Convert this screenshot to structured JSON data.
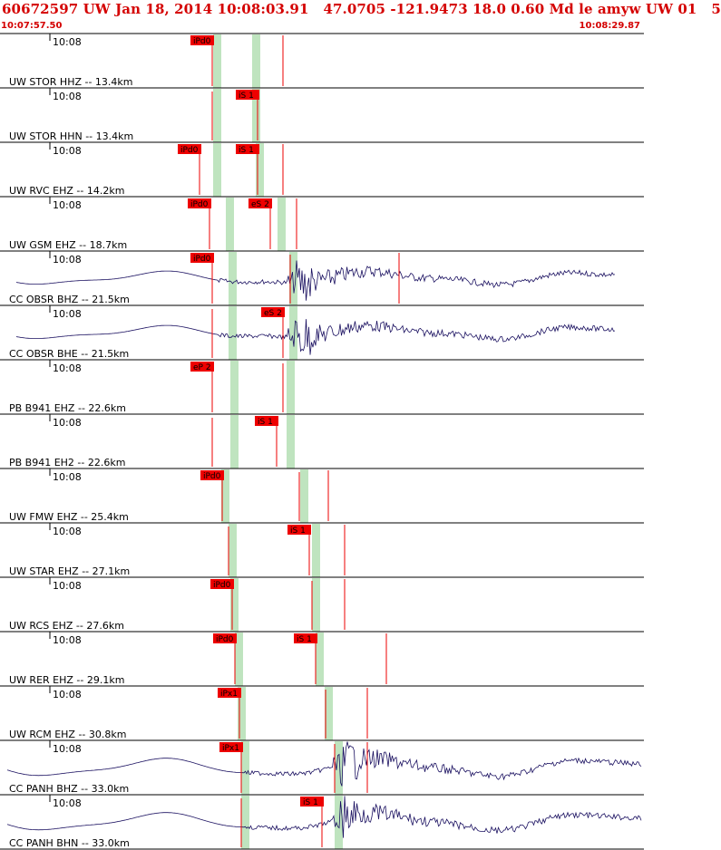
{
  "header": {
    "title": "60672597 UW Jan 18, 2014 10:08:03.91   47.0705 -121.9473 18.0 0.60 Md le amyw UW 01   5",
    "start_time": "10:07:57.50",
    "end_time": "10:08:29.87"
  },
  "colors": {
    "header_text": "#d40000",
    "pick_box": "#ee0000",
    "pick_window": "#bfe4bf",
    "trace": "#1a1060"
  },
  "traces": [
    {
      "label": "UW STOR HHZ -- 13.4km",
      "time": "10:08",
      "wave": "flat",
      "picks": [
        {
          "text": "iPd0",
          "p": 0.33,
          "wx": 0.337
        },
        {
          "text": "",
          "p": 0.44,
          "wx": 0.397,
          "noBox": true
        }
      ],
      "spikes": [
        0.44
      ]
    },
    {
      "label": "UW STOR HHN -- 13.4km",
      "time": "10:08",
      "wave": "flat",
      "picks": [
        {
          "text": "",
          "p": 0.33,
          "wx": 0.337,
          "noBox": true
        },
        {
          "text": "iS 1",
          "p": 0.4,
          "wx": 0.397
        }
      ],
      "spikes": []
    },
    {
      "label": "UW RVC EHZ -- 14.2km",
      "time": "10:08",
      "wave": "flat",
      "picks": [
        {
          "text": "iPd0",
          "p": 0.31,
          "wx": 0.336
        },
        {
          "text": "iS 1",
          "p": 0.4,
          "wx": 0.403
        }
      ],
      "spikes": [
        0.44
      ]
    },
    {
      "label": "UW GSM EHZ -- 18.7km",
      "time": "10:08",
      "wave": "flat",
      "picks": [
        {
          "text": "iPd0",
          "p": 0.325,
          "wx": 0.356
        },
        {
          "text": "eS 2",
          "p": 0.42,
          "wx": 0.436
        }
      ],
      "spikes": [
        0.46
      ]
    },
    {
      "label": "CC OBSR BHZ -- 21.5km",
      "time": "10:08",
      "wave": "quake",
      "picks": [
        {
          "text": "iPd0",
          "p": 0.33,
          "wx": 0.36
        },
        {
          "text": "",
          "p": 0.45,
          "wx": 0.455,
          "noBox": true
        }
      ],
      "spikes": [
        0.62
      ]
    },
    {
      "label": "CC OBSR BHE -- 21.5km",
      "time": "10:08",
      "wave": "quake2",
      "picks": [
        {
          "text": "",
          "p": 0.33,
          "wx": 0.36,
          "noBox": true
        },
        {
          "text": "eS 2",
          "p": 0.44,
          "wx": 0.455
        }
      ],
      "spikes": []
    },
    {
      "label": "PB B941 EHZ -- 22.6km",
      "time": "10:08",
      "wave": "flat",
      "picks": [
        {
          "text": "eP 2",
          "p": 0.33,
          "wx": 0.364
        },
        {
          "text": "",
          "p": 0.44,
          "wx": 0.45,
          "noBox": true
        }
      ],
      "spikes": []
    },
    {
      "label": "PB B941 EH2 -- 22.6km",
      "time": "10:08",
      "wave": "flat",
      "picks": [
        {
          "text": "",
          "p": 0.33,
          "wx": 0.364,
          "noBox": true
        },
        {
          "text": "iS 1",
          "p": 0.43,
          "wx": 0.45
        }
      ],
      "spikes": []
    },
    {
      "label": "UW FMW EHZ -- 25.4km",
      "time": "10:08",
      "wave": "flat",
      "picks": [
        {
          "text": "iPd0",
          "p": 0.345,
          "wx": 0.35
        },
        {
          "text": "",
          "p": 0.465,
          "wx": 0.472,
          "noBox": true
        }
      ],
      "spikes": [
        0.51
      ]
    },
    {
      "label": "UW STAR EHZ -- 27.1km",
      "time": "10:08",
      "wave": "flat",
      "picks": [
        {
          "text": "",
          "p": 0.355,
          "wx": 0.36,
          "noBox": true
        },
        {
          "text": "iS 1",
          "p": 0.48,
          "wx": 0.49
        }
      ],
      "spikes": [
        0.535
      ]
    },
    {
      "label": "UW RCS EHZ -- 27.6km",
      "time": "10:08",
      "wave": "flat",
      "picks": [
        {
          "text": "iPd0",
          "p": 0.36,
          "wx": 0.364
        },
        {
          "text": "",
          "p": 0.485,
          "wx": 0.49,
          "noBox": true
        }
      ],
      "spikes": [
        0.535
      ]
    },
    {
      "label": "UW RER EHZ -- 29.1km",
      "time": "10:08",
      "wave": "flat",
      "picks": [
        {
          "text": "iPd0",
          "p": 0.365,
          "wx": 0.37
        },
        {
          "text": "iS 1",
          "p": 0.49,
          "wx": 0.496
        }
      ],
      "spikes": [
        0.6
      ]
    },
    {
      "label": "UW RCM EHZ -- 30.8km",
      "time": "10:08",
      "wave": "flat",
      "picks": [
        {
          "text": "iPx1",
          "p": 0.372,
          "wx": 0.375
        },
        {
          "text": "",
          "p": 0.505,
          "wx": 0.51,
          "noBox": true
        }
      ],
      "spikes": [
        0.57
      ]
    },
    {
      "label": "CC PANH BHZ -- 33.0km",
      "time": "10:08",
      "wave": "quake3",
      "picks": [
        {
          "text": "iPx1",
          "p": 0.375,
          "wx": 0.38
        },
        {
          "text": "",
          "p": 0.52,
          "wx": 0.525,
          "noBox": true
        }
      ],
      "spikes": [
        0.57
      ]
    },
    {
      "label": "CC PANH BHN -- 33.0km",
      "time": "10:08",
      "wave": "quake4",
      "picks": [
        {
          "text": "",
          "p": 0.375,
          "wx": 0.38,
          "noBox": true
        },
        {
          "text": "iS 1",
          "p": 0.5,
          "wx": 0.525
        }
      ],
      "spikes": []
    }
  ]
}
